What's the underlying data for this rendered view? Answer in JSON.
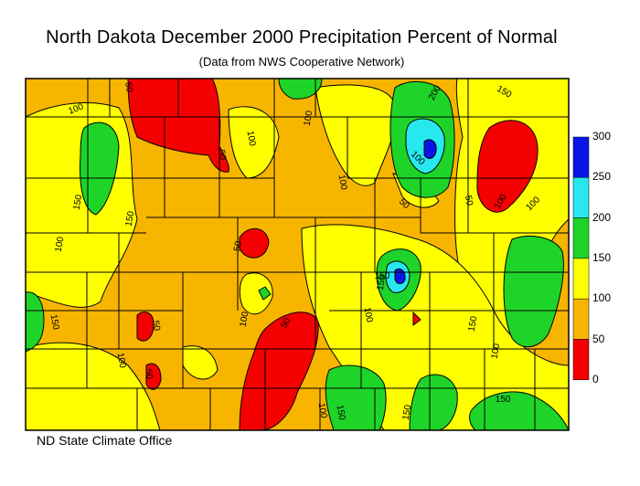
{
  "title": "North Dakota December 2000 Precipitation Percent of Normal",
  "subtitle": "(Data from NWS Cooperative Network)",
  "footer": "ND State Climate Office",
  "legend": {
    "ticks": [
      "300",
      "250",
      "200",
      "150",
      "100",
      "50",
      "0"
    ],
    "bands": [
      {
        "range": "250-300",
        "color": "#0a14e6"
      },
      {
        "range": "200-250",
        "color": "#27e8ee"
      },
      {
        "range": "150-200",
        "color": "#1fd428"
      },
      {
        "range": "100-150",
        "color": "#ffff00"
      },
      {
        "range": "50-100",
        "color": "#f7b500"
      },
      {
        "range": "0-50",
        "color": "#f50000"
      }
    ]
  },
  "contour_labels": [
    "100",
    "50",
    "50",
    "100",
    "150",
    "100",
    "150",
    "100",
    "100",
    "50",
    "100",
    "200",
    "150",
    "100",
    "50",
    "100",
    "150",
    "100",
    "50",
    "150",
    "100",
    "100",
    "150",
    "50",
    "100",
    "100",
    "50",
    "50",
    "150",
    "150",
    "150",
    "150"
  ]
}
